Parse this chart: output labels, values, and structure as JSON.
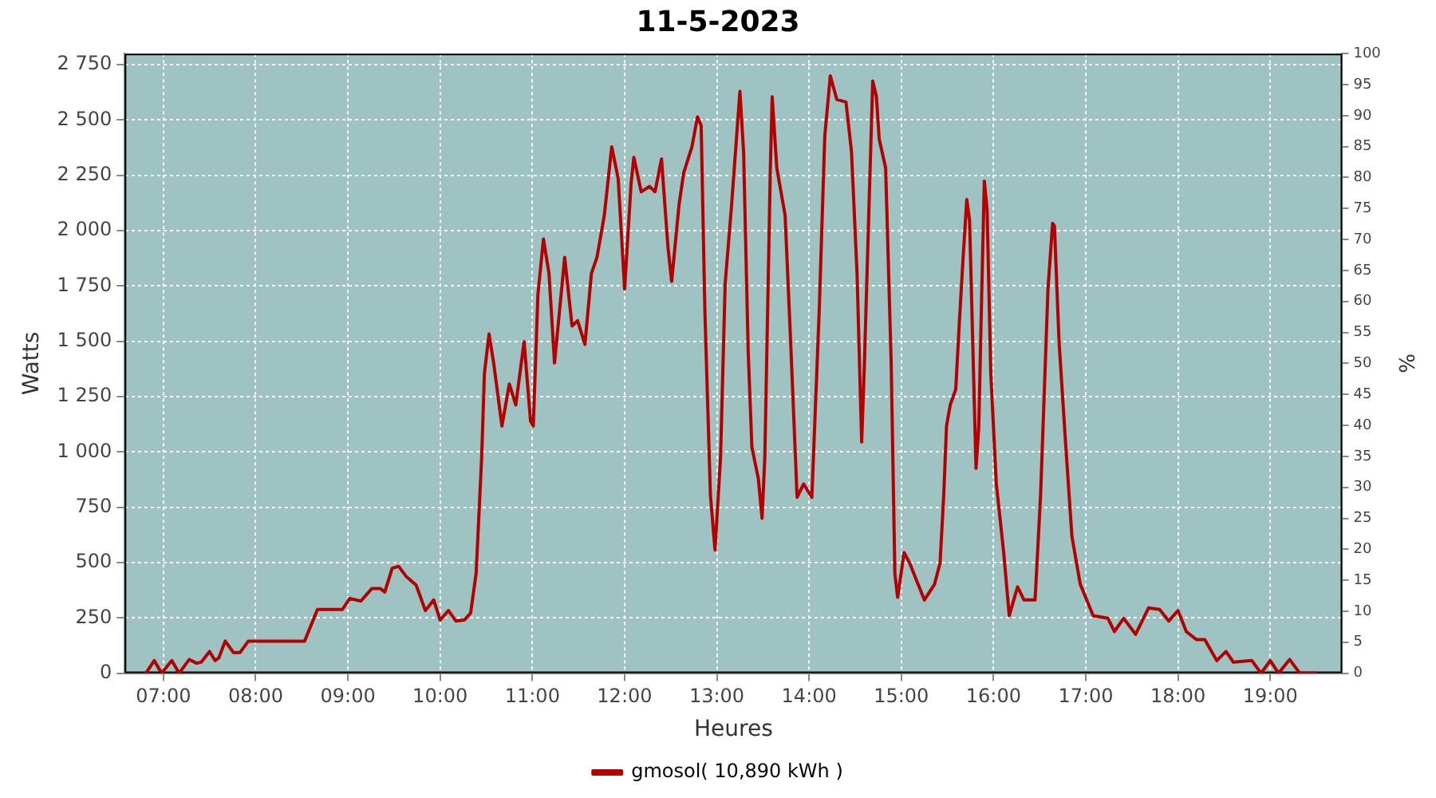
{
  "chart_data": {
    "type": "line",
    "title": "11-5-2023",
    "xlabel": "Heures",
    "ylabel": "Watts",
    "y2label": "%",
    "xlim": [
      6.58,
      19.78
    ],
    "xticks": [
      {
        "value": 7,
        "label": "07:00"
      },
      {
        "value": 8,
        "label": "08:00"
      },
      {
        "value": 9,
        "label": "09:00"
      },
      {
        "value": 10,
        "label": "10:00"
      },
      {
        "value": 11,
        "label": "11:00"
      },
      {
        "value": 12,
        "label": "12:00"
      },
      {
        "value": 13,
        "label": "13:00"
      },
      {
        "value": 14,
        "label": "14:00"
      },
      {
        "value": 15,
        "label": "15:00"
      },
      {
        "value": 16,
        "label": "16:00"
      },
      {
        "value": 17,
        "label": "17:00"
      },
      {
        "value": 18,
        "label": "18:00"
      },
      {
        "value": 19,
        "label": "19:00"
      }
    ],
    "ylim": [
      0,
      2800
    ],
    "yticks": [
      0,
      250,
      500,
      750,
      {
        "value": 1000,
        "label": "1 000"
      },
      {
        "value": 1250,
        "label": "1 250"
      },
      {
        "value": 1500,
        "label": "1 500"
      },
      {
        "value": 1750,
        "label": "1 750"
      },
      {
        "value": 2000,
        "label": "2 000"
      },
      {
        "value": 2250,
        "label": "2 250"
      },
      {
        "value": 2500,
        "label": "2 500"
      },
      {
        "value": 2750,
        "label": "2 750"
      }
    ],
    "y2lim": [
      0,
      100
    ],
    "y2ticks": [
      0,
      5,
      10,
      15,
      20,
      25,
      30,
      35,
      40,
      45,
      50,
      55,
      60,
      65,
      70,
      75,
      80,
      85,
      90,
      95,
      100
    ],
    "grid": true,
    "legend": "bottom",
    "marker": "none",
    "line_style": "solid",
    "series": [
      {
        "name": "gmosol( 10,890 kWh )",
        "color": "#b50000",
        "x": [
          6.81,
          6.9,
          6.98,
          7.09,
          7.17,
          7.28,
          7.36,
          7.41,
          7.5,
          7.56,
          7.6,
          7.67,
          7.76,
          7.83,
          7.92,
          8.53,
          8.67,
          8.94,
          9.02,
          9.14,
          9.26,
          9.35,
          9.4,
          9.48,
          9.55,
          9.63,
          9.74,
          9.84,
          9.93,
          10.0,
          10.09,
          10.17,
          10.26,
          10.33,
          10.39,
          10.45,
          10.48,
          10.53,
          10.58,
          10.67,
          10.75,
          10.82,
          10.91,
          10.98,
          11.01,
          11.06,
          11.12,
          11.18,
          11.24,
          11.35,
          11.43,
          11.49,
          11.57,
          11.64,
          11.7,
          11.78,
          11.86,
          11.93,
          12.0,
          12.07,
          12.1,
          12.18,
          12.27,
          12.33,
          12.4,
          12.47,
          12.51,
          12.59,
          12.64,
          12.73,
          12.79,
          12.83,
          12.87,
          12.93,
          12.98,
          13.04,
          13.09,
          13.16,
          13.25,
          13.29,
          13.34,
          13.38,
          13.45,
          13.49,
          13.52,
          13.58,
          13.6,
          13.65,
          13.74,
          13.8,
          13.87,
          13.94,
          14.03,
          14.11,
          14.17,
          14.23,
          14.3,
          14.4,
          14.46,
          14.52,
          14.57,
          14.6,
          14.65,
          14.69,
          14.73,
          14.76,
          14.83,
          14.89,
          14.93,
          14.96,
          15.03,
          15.09,
          15.17,
          15.25,
          15.36,
          15.42,
          15.46,
          15.49,
          15.53,
          15.59,
          15.63,
          15.67,
          15.71,
          15.74,
          15.78,
          15.81,
          15.84,
          15.87,
          15.9,
          15.93,
          15.97,
          16.03,
          16.11,
          16.17,
          16.26,
          16.33,
          16.45,
          16.51,
          16.59,
          16.64,
          16.66,
          16.71,
          16.78,
          16.85,
          16.94,
          17.08,
          17.24,
          17.31,
          17.41,
          17.54,
          17.68,
          17.8,
          17.9,
          18.0,
          18.09,
          18.2,
          18.29,
          18.42,
          18.52,
          18.6,
          18.8,
          18.9,
          19.0,
          19.09,
          19.21,
          19.32,
          19.5
        ],
        "values": [
          0,
          57,
          0,
          57,
          0,
          62,
          45,
          50,
          98,
          57,
          69,
          145,
          93,
          93,
          145,
          145,
          288,
          288,
          338,
          326,
          383,
          383,
          367,
          474,
          483,
          438,
          398,
          283,
          331,
          240,
          283,
          236,
          240,
          271,
          450,
          974,
          1355,
          1533,
          1402,
          1117,
          1307,
          1212,
          1498,
          1140,
          1117,
          1712,
          1962,
          1807,
          1402,
          1879,
          1569,
          1593,
          1486,
          1807,
          1879,
          2069,
          2379,
          2236,
          1736,
          2212,
          2331,
          2176,
          2200,
          2176,
          2324,
          1926,
          1771,
          2117,
          2260,
          2379,
          2514,
          2474,
          1640,
          807,
          557,
          974,
          1760,
          2117,
          2629,
          2355,
          1450,
          1021,
          879,
          700,
          974,
          2283,
          2605,
          2283,
          2069,
          1498,
          795,
          855,
          795,
          1640,
          2426,
          2700,
          2593,
          2581,
          2355,
          1807,
          1045,
          1402,
          2117,
          2676,
          2605,
          2414,
          2283,
          1402,
          450,
          343,
          545,
          498,
          414,
          331,
          402,
          498,
          807,
          1117,
          1212,
          1283,
          1593,
          1879,
          2141,
          2045,
          1402,
          926,
          1117,
          1688,
          2224,
          2093,
          1355,
          855,
          545,
          260,
          390,
          331,
          331,
          807,
          1736,
          2033,
          2021,
          1498,
          1045,
          617,
          402,
          260,
          248,
          188,
          248,
          176,
          295,
          288,
          236,
          283,
          188,
          152,
          152,
          57,
          98,
          50,
          57,
          0,
          57,
          0,
          62,
          0,
          0
        ]
      }
    ]
  }
}
